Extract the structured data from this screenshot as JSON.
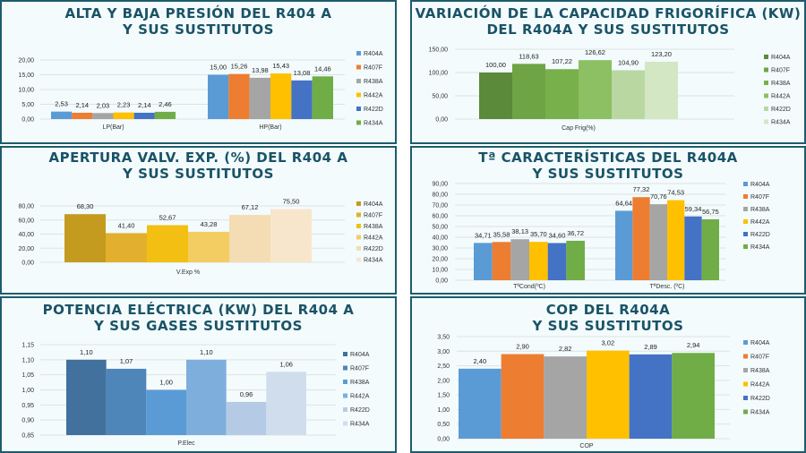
{
  "series_names": [
    "R404A",
    "R407F",
    "R438A",
    "R442A",
    "R422D",
    "R434A"
  ],
  "chart_data": [
    {
      "type": "bar",
      "title": "ALTA Y BAJA PRESIÓN DEL R404 A\nY SUS SUSTITUTOS",
      "categories": [
        "LP(Bar)",
        "HP(Bar)"
      ],
      "series": [
        {
          "name": "R404A",
          "values": [
            2.53,
            15.0
          ]
        },
        {
          "name": "R407F",
          "values": [
            2.14,
            15.26
          ]
        },
        {
          "name": "R438A",
          "values": [
            2.03,
            13.98
          ]
        },
        {
          "name": "R442A",
          "values": [
            2.23,
            15.43
          ]
        },
        {
          "name": "R422D",
          "values": [
            2.14,
            13.08
          ]
        },
        {
          "name": "R434A",
          "values": [
            2.46,
            14.46
          ]
        }
      ],
      "labels": [
        [
          "2,53",
          "15,00"
        ],
        [
          "2,14",
          "15,26"
        ],
        [
          "2,03",
          "13,98"
        ],
        [
          "2,23",
          "15,43"
        ],
        [
          "2,14",
          "13,08"
        ],
        [
          "2,46",
          "14,46"
        ]
      ],
      "ylim": [
        0,
        20
      ],
      "yticks": [
        "0,00",
        "5,00",
        "10,00",
        "15,00",
        "20,00"
      ],
      "colors": [
        "#5b9bd5",
        "#ed7d31",
        "#a5a5a5",
        "#ffc000",
        "#4472c4",
        "#70ad47"
      ],
      "legend": "right"
    },
    {
      "type": "bar",
      "title": "VARIACIÓN DE LA CAPACIDAD FRIGORÍFICA (KW)\nDEL R404A Y SUS SUSTITUTOS",
      "categories": [
        "Cap Frig(%)"
      ],
      "series": [
        {
          "name": "R404A",
          "values": [
            100.0
          ]
        },
        {
          "name": "R407F",
          "values": [
            118.63
          ]
        },
        {
          "name": "R438A",
          "values": [
            107.22
          ]
        },
        {
          "name": "R442A",
          "values": [
            126.62
          ]
        },
        {
          "name": "R422D",
          "values": [
            104.9
          ]
        },
        {
          "name": "R434A",
          "values": [
            123.2
          ]
        }
      ],
      "labels": [
        [
          "100,00"
        ],
        [
          "118,63"
        ],
        [
          "107,22"
        ],
        [
          "126,62"
        ],
        [
          "104,90"
        ],
        [
          "123,20"
        ]
      ],
      "ylim": [
        0,
        150
      ],
      "yticks": [
        "0,00",
        "50,00",
        "100,00",
        "150,00"
      ],
      "colors": [
        "#5a8a3a",
        "#6fa445",
        "#78b04c",
        "#8cc063",
        "#b9d8a1",
        "#d3e7c4"
      ],
      "legend": "right"
    },
    {
      "type": "bar",
      "title": "APERTURA VALV. EXP. (%) DEL R404 A\nY SUS SUSTITUTOS",
      "categories": [
        "V.Exp %"
      ],
      "series": [
        {
          "name": "R404A",
          "values": [
            68.3
          ]
        },
        {
          "name": "R407F",
          "values": [
            41.4
          ]
        },
        {
          "name": "R438A",
          "values": [
            52.67
          ]
        },
        {
          "name": "R442A",
          "values": [
            43.28
          ]
        },
        {
          "name": "R422D",
          "values": [
            67.12
          ]
        },
        {
          "name": "R434A",
          "values": [
            75.5
          ]
        }
      ],
      "labels": [
        [
          "68,30"
        ],
        [
          "41,40"
        ],
        [
          "52,67"
        ],
        [
          "43,28"
        ],
        [
          "67,12"
        ],
        [
          "75,50"
        ]
      ],
      "ylim": [
        0,
        80
      ],
      "yticks": [
        "0,00",
        "20,00",
        "40,00",
        "60,00",
        "80,00"
      ],
      "colors": [
        "#c49b1f",
        "#e2b02e",
        "#f2bf12",
        "#f4cd62",
        "#f4dcb4",
        "#f8e6cc"
      ],
      "legend": "right"
    },
    {
      "type": "bar",
      "title": "Tª CARACTERÍSTICAS DEL R404A\nY SUS SUSTITUTOS",
      "categories": [
        "TªCond(ºC)",
        "TªDesc. (ºC)"
      ],
      "series": [
        {
          "name": "R404A",
          "values": [
            34.71,
            64.64
          ]
        },
        {
          "name": "R407F",
          "values": [
            35.58,
            77.32
          ]
        },
        {
          "name": "R438A",
          "values": [
            38.13,
            70.76
          ]
        },
        {
          "name": "R442A",
          "values": [
            35.7,
            74.53
          ]
        },
        {
          "name": "R422D",
          "values": [
            34.6,
            59.34
          ]
        },
        {
          "name": "R434A",
          "values": [
            36.72,
            56.75
          ]
        }
      ],
      "labels": [
        [
          "34,71",
          "64,64"
        ],
        [
          "35,58",
          "77,32"
        ],
        [
          "38,13",
          "70,76"
        ],
        [
          "35,70",
          "74,53"
        ],
        [
          "34,60",
          "59,34"
        ],
        [
          "36,72",
          "56,75"
        ]
      ],
      "ylim": [
        0,
        90
      ],
      "yticks": [
        "0,00",
        "10,00",
        "20,00",
        "30,00",
        "40,00",
        "50,00",
        "60,00",
        "70,00",
        "80,00",
        "90,00"
      ],
      "colors": [
        "#5b9bd5",
        "#ed7d31",
        "#a5a5a5",
        "#ffc000",
        "#4472c4",
        "#70ad47"
      ],
      "legend": "right"
    },
    {
      "type": "bar",
      "title": "POTENCIA ELÉCTRICA (KW) DEL R404 A\nY SUS GASES SUSTITUTOS",
      "categories": [
        "P.Elec"
      ],
      "series": [
        {
          "name": "R404A",
          "values": [
            1.1
          ]
        },
        {
          "name": "R407F",
          "values": [
            1.07
          ]
        },
        {
          "name": "R438A",
          "values": [
            1.0
          ]
        },
        {
          "name": "R442A",
          "values": [
            1.1
          ]
        },
        {
          "name": "R422D",
          "values": [
            0.96
          ]
        },
        {
          "name": "R434A",
          "values": [
            1.06
          ]
        }
      ],
      "labels": [
        [
          "1,10"
        ],
        [
          "1,07"
        ],
        [
          "1,00"
        ],
        [
          "1,10"
        ],
        [
          "0,96"
        ],
        [
          "1,06"
        ]
      ],
      "ylim": [
        0.85,
        1.15
      ],
      "yticks": [
        "0,85",
        "0,90",
        "0,95",
        "1,00",
        "1,05",
        "1,10",
        "1,15"
      ],
      "colors": [
        "#41719c",
        "#4e86ba",
        "#5b9bd5",
        "#7eaedc",
        "#b5cbe5",
        "#d0dded"
      ],
      "legend": "right"
    },
    {
      "type": "bar",
      "title": "COP DEL R404A\nY SUS SUSTITUTOS",
      "categories": [
        "COP"
      ],
      "series": [
        {
          "name": "R404A",
          "values": [
            2.4
          ]
        },
        {
          "name": "R407F",
          "values": [
            2.9
          ]
        },
        {
          "name": "R438A",
          "values": [
            2.82
          ]
        },
        {
          "name": "R442A",
          "values": [
            3.02
          ]
        },
        {
          "name": "R422D",
          "values": [
            2.89
          ]
        },
        {
          "name": "R434A",
          "values": [
            2.94
          ]
        }
      ],
      "labels": [
        [
          "2,40"
        ],
        [
          "2,90"
        ],
        [
          "2,82"
        ],
        [
          "3,02"
        ],
        [
          "2,89"
        ],
        [
          "2,94"
        ]
      ],
      "ylim": [
        0,
        3.5
      ],
      "yticks": [
        "0,00",
        "0,50",
        "1,00",
        "1,50",
        "2,00",
        "2,50",
        "3,00",
        "3,50"
      ],
      "colors": [
        "#5b9bd5",
        "#ed7d31",
        "#a5a5a5",
        "#ffc000",
        "#4472c4",
        "#70ad47"
      ],
      "legend": "right"
    }
  ]
}
